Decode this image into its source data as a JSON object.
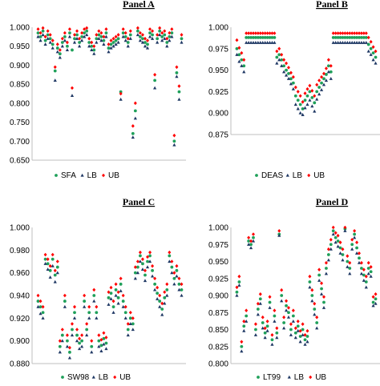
{
  "colors": {
    "green": "#1fa05a",
    "navy": "#1f3864",
    "red": "#ff0000"
  },
  "chart_data": [
    {
      "type": "scatter",
      "title": "Panel A",
      "ylim": [
        0.65,
        1.0
      ],
      "yticks": [
        "1.000",
        "0.950",
        "0.900",
        "0.850",
        "0.800",
        "0.750",
        "0.700",
        "0.650"
      ],
      "grid": false,
      "legend_position": "bottom",
      "series": [
        {
          "name": "SFA",
          "values": [
            0.985,
            0.975,
            0.99,
            0.965,
            0.98,
            0.97,
            0.955,
            0.885,
            0.945,
            0.93,
            0.96,
            0.975,
            0.95,
            0.985,
            0.94,
            0.97,
            0.98,
            0.96,
            0.975,
            0.985,
            0.99,
            0.96,
            0.95,
            0.94,
            0.97,
            0.98,
            0.975,
            0.965,
            0.985,
            0.945,
            0.955,
            0.96,
            0.965,
            0.97,
            0.83,
            0.985,
            0.975,
            0.96,
            0.98,
            0.72,
            0.78,
            0.99,
            0.975,
            0.97,
            0.96,
            0.955,
            0.985,
            0.98,
            0.86,
            0.97,
            0.99,
            0.975,
            0.98,
            0.96,
            0.975,
            0.985,
            0.7,
            0.88,
            0.83,
            0.97
          ]
        },
        {
          "name": "LB",
          "values": [
            0.975,
            0.965,
            0.98,
            0.955,
            0.97,
            0.96,
            0.945,
            0.86,
            0.935,
            0.92,
            0.95,
            0.965,
            0.94,
            0.975,
            0.82,
            0.96,
            0.97,
            0.95,
            0.965,
            0.975,
            0.98,
            0.95,
            0.94,
            0.93,
            0.96,
            0.97,
            0.965,
            0.955,
            0.975,
            0.935,
            0.945,
            0.95,
            0.955,
            0.96,
            0.81,
            0.975,
            0.965,
            0.95,
            0.97,
            0.71,
            0.76,
            0.98,
            0.965,
            0.96,
            0.95,
            0.945,
            0.975,
            0.97,
            0.84,
            0.96,
            0.98,
            0.965,
            0.97,
            0.95,
            0.965,
            0.975,
            0.69,
            0.87,
            0.81,
            0.96
          ]
        },
        {
          "name": "UB",
          "values": [
            0.995,
            0.985,
            0.998,
            0.975,
            0.99,
            0.98,
            0.965,
            0.895,
            0.955,
            0.94,
            0.97,
            0.985,
            0.96,
            0.995,
            0.84,
            0.98,
            0.99,
            0.97,
            0.985,
            0.995,
            0.998,
            0.97,
            0.96,
            0.95,
            0.98,
            0.99,
            0.985,
            0.975,
            0.995,
            0.955,
            0.965,
            0.97,
            0.975,
            0.98,
            0.825,
            0.995,
            0.985,
            0.97,
            0.99,
            0.74,
            0.8,
            0.998,
            0.985,
            0.98,
            0.97,
            0.965,
            0.995,
            0.99,
            0.875,
            0.98,
            0.998,
            0.985,
            0.99,
            0.97,
            0.985,
            0.995,
            0.715,
            0.895,
            0.845,
            0.98
          ]
        }
      ]
    },
    {
      "type": "scatter",
      "title": "Panel B",
      "ylim": [
        0.875,
        1.0
      ],
      "yticks": [
        "1.000",
        "0.975",
        "0.950",
        "0.925",
        "0.900",
        "0.875"
      ],
      "grid": false,
      "legend_position": "bottom",
      "series": [
        {
          "name": "DEAS",
          "values": [
            0.975,
            0.968,
            0.962,
            0.955,
            0.988,
            0.988,
            0.988,
            0.988,
            0.988,
            0.988,
            0.988,
            0.988,
            0.988,
            0.988,
            0.988,
            0.988,
            0.988,
            0.965,
            0.968,
            0.962,
            0.955,
            0.95,
            0.946,
            0.94,
            0.935,
            0.92,
            0.915,
            0.91,
            0.905,
            0.915,
            0.92,
            0.925,
            0.918,
            0.912,
            0.925,
            0.93,
            0.935,
            0.94,
            0.945,
            0.955,
            0.948,
            0.988,
            0.988,
            0.988,
            0.988,
            0.988,
            0.988,
            0.988,
            0.988,
            0.988,
            0.988,
            0.988,
            0.988,
            0.988,
            0.988,
            0.988,
            0.98,
            0.975,
            0.97,
            0.965
          ]
        },
        {
          "name": "LB",
          "values": [
            0.968,
            0.96,
            0.955,
            0.948,
            0.982,
            0.982,
            0.982,
            0.982,
            0.982,
            0.982,
            0.982,
            0.982,
            0.982,
            0.982,
            0.982,
            0.982,
            0.982,
            0.958,
            0.962,
            0.955,
            0.948,
            0.944,
            0.94,
            0.934,
            0.928,
            0.91,
            0.905,
            0.9,
            0.898,
            0.906,
            0.91,
            0.915,
            0.908,
            0.902,
            0.916,
            0.922,
            0.927,
            0.933,
            0.938,
            0.948,
            0.94,
            0.982,
            0.982,
            0.982,
            0.982,
            0.982,
            0.982,
            0.982,
            0.982,
            0.982,
            0.982,
            0.982,
            0.982,
            0.982,
            0.982,
            0.982,
            0.972,
            0.968,
            0.962,
            0.958
          ]
        },
        {
          "name": "UB",
          "values": [
            0.985,
            0.976,
            0.97,
            0.962,
            0.993,
            0.993,
            0.993,
            0.993,
            0.993,
            0.993,
            0.993,
            0.993,
            0.993,
            0.993,
            0.993,
            0.993,
            0.993,
            0.972,
            0.975,
            0.968,
            0.962,
            0.958,
            0.953,
            0.947,
            0.942,
            0.93,
            0.925,
            0.92,
            0.913,
            0.923,
            0.928,
            0.932,
            0.926,
            0.92,
            0.933,
            0.938,
            0.942,
            0.946,
            0.952,
            0.962,
            0.955,
            0.993,
            0.993,
            0.993,
            0.993,
            0.993,
            0.993,
            0.993,
            0.993,
            0.993,
            0.993,
            0.993,
            0.993,
            0.993,
            0.993,
            0.993,
            0.988,
            0.983,
            0.977,
            0.972
          ]
        }
      ]
    },
    {
      "type": "scatter",
      "title": "Panel C",
      "ylim": [
        0.88,
        1.0
      ],
      "yticks": [
        "1.000",
        "0.980",
        "0.960",
        "0.940",
        "0.920",
        "0.900",
        "0.880"
      ],
      "grid": false,
      "legend_position": "bottom",
      "series": [
        {
          "name": "SW98",
          "values": [
            0.935,
            0.93,
            0.925,
            0.972,
            0.968,
            0.962,
            0.972,
            0.958,
            0.965,
            0.895,
            0.905,
            0.935,
            0.9,
            0.89,
            0.91,
            0.925,
            0.905,
            0.898,
            0.9,
            0.935,
            0.91,
            0.925,
            0.895,
            0.94,
            0.925,
            0.9,
            0.896,
            0.902,
            0.898,
            0.938,
            0.942,
            0.93,
            0.945,
            0.938,
            0.95,
            0.935,
            0.925,
            0.91,
            0.92,
            0.915,
            0.96,
            0.965,
            0.975,
            0.968,
            0.958,
            0.97,
            0.975,
            0.962,
            0.95,
            0.942,
            0.935,
            0.928,
            0.938,
            0.945,
            0.975,
            0.965,
            0.955,
            0.962,
            0.95,
            0.945
          ]
        },
        {
          "name": "LB",
          "values": [
            0.93,
            0.924,
            0.92,
            0.968,
            0.963,
            0.956,
            0.966,
            0.952,
            0.96,
            0.89,
            0.9,
            0.93,
            0.895,
            0.885,
            0.905,
            0.92,
            0.9,
            0.893,
            0.895,
            0.93,
            0.905,
            0.92,
            0.89,
            0.935,
            0.92,
            0.895,
            0.891,
            0.897,
            0.893,
            0.932,
            0.937,
            0.925,
            0.94,
            0.933,
            0.944,
            0.93,
            0.92,
            0.905,
            0.915,
            0.91,
            0.955,
            0.96,
            0.97,
            0.963,
            0.953,
            0.965,
            0.97,
            0.957,
            0.945,
            0.937,
            0.93,
            0.923,
            0.933,
            0.94,
            0.97,
            0.96,
            0.95,
            0.957,
            0.945,
            0.94
          ]
        },
        {
          "name": "UB",
          "values": [
            0.94,
            0.935,
            0.93,
            0.976,
            0.972,
            0.966,
            0.976,
            0.962,
            0.97,
            0.9,
            0.91,
            0.94,
            0.905,
            0.894,
            0.915,
            0.93,
            0.91,
            0.902,
            0.905,
            0.94,
            0.915,
            0.93,
            0.9,
            0.945,
            0.93,
            0.905,
            0.901,
            0.907,
            0.903,
            0.943,
            0.947,
            0.935,
            0.95,
            0.943,
            0.955,
            0.94,
            0.93,
            0.915,
            0.925,
            0.92,
            0.965,
            0.97,
            0.978,
            0.972,
            0.962,
            0.974,
            0.978,
            0.966,
            0.955,
            0.947,
            0.94,
            0.933,
            0.943,
            0.95,
            0.978,
            0.97,
            0.96,
            0.966,
            0.955,
            0.95
          ]
        }
      ]
    },
    {
      "type": "scatter",
      "title": "Panel D",
      "ylim": [
        0.8,
        1.0
      ],
      "yticks": [
        "1.000",
        "0.975",
        "0.950",
        "0.925",
        "0.900",
        "0.875",
        "0.850",
        "0.825",
        "0.800"
      ],
      "grid": false,
      "legend_position": "bottom",
      "series": [
        {
          "name": "LT99",
          "values": [
            0.905,
            0.92,
            0.825,
            0.855,
            0.87,
            0.98,
            0.975,
            0.985,
            0.85,
            0.88,
            0.895,
            0.86,
            0.845,
            0.855,
            0.89,
            0.835,
            0.87,
            0.845,
            0.99,
            0.9,
            0.86,
            0.885,
            0.875,
            0.85,
            0.87,
            0.845,
            0.855,
            0.84,
            0.85,
            0.835,
            0.84,
            0.92,
            0.9,
            0.88,
            0.86,
            0.93,
            0.91,
            0.89,
            0.94,
            0.96,
            0.975,
            0.995,
            0.985,
            0.98,
            0.97,
            0.96,
            0.998,
            0.95,
            0.94,
            0.975,
            0.99,
            0.97,
            0.955,
            0.94,
            0.93,
            0.92,
            0.94,
            0.935,
            0.89,
            0.895
          ]
        },
        {
          "name": "LB",
          "values": [
            0.9,
            0.915,
            0.818,
            0.848,
            0.862,
            0.975,
            0.97,
            0.98,
            0.842,
            0.872,
            0.888,
            0.852,
            0.838,
            0.848,
            0.882,
            0.828,
            0.862,
            0.838,
            0.988,
            0.892,
            0.852,
            0.878,
            0.868,
            0.842,
            0.862,
            0.838,
            0.848,
            0.832,
            0.842,
            0.828,
            0.832,
            0.912,
            0.892,
            0.872,
            0.852,
            0.922,
            0.902,
            0.882,
            0.932,
            0.952,
            0.968,
            0.99,
            0.978,
            0.972,
            0.962,
            0.952,
            0.995,
            0.942,
            0.932,
            0.968,
            0.985,
            0.962,
            0.948,
            0.932,
            0.922,
            0.912,
            0.932,
            0.928,
            0.885,
            0.888
          ]
        },
        {
          "name": "UB",
          "values": [
            0.912,
            0.928,
            0.832,
            0.862,
            0.878,
            0.985,
            0.98,
            0.99,
            0.858,
            0.888,
            0.902,
            0.868,
            0.852,
            0.862,
            0.898,
            0.842,
            0.878,
            0.852,
            0.995,
            0.908,
            0.868,
            0.892,
            0.882,
            0.858,
            0.878,
            0.852,
            0.862,
            0.848,
            0.858,
            0.842,
            0.848,
            0.928,
            0.908,
            0.888,
            0.868,
            0.938,
            0.918,
            0.898,
            0.948,
            0.968,
            0.982,
            1.0,
            0.992,
            0.988,
            0.978,
            0.968,
            1.0,
            0.958,
            0.948,
            0.982,
            0.995,
            0.978,
            0.962,
            0.948,
            0.938,
            0.928,
            0.948,
            0.942,
            0.898,
            0.902
          ]
        }
      ]
    }
  ]
}
